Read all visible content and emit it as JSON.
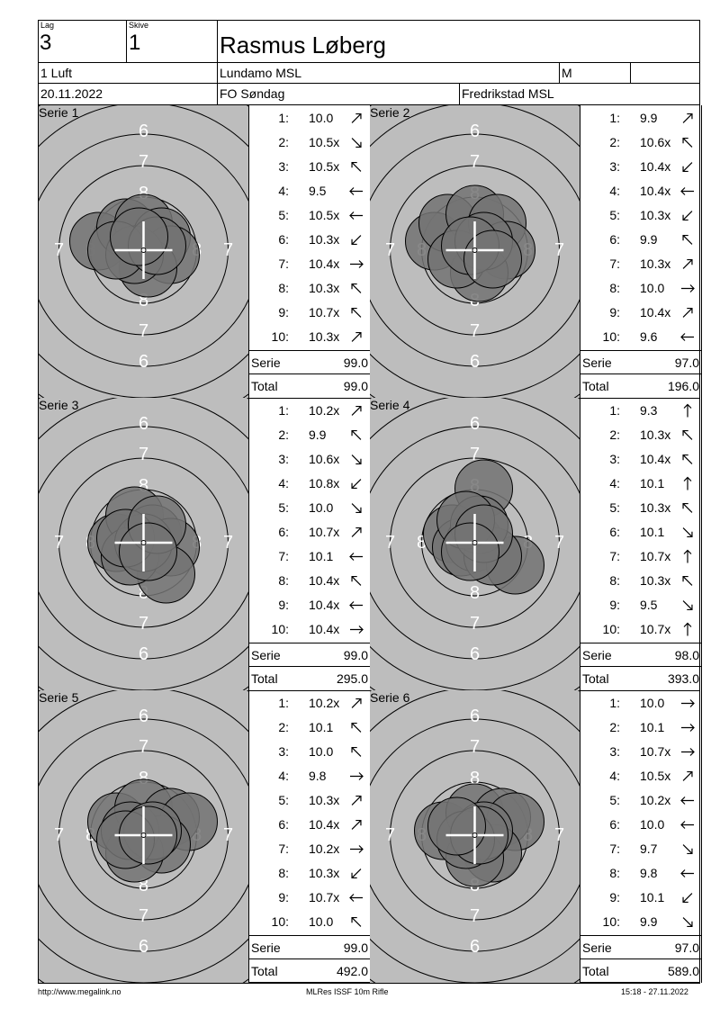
{
  "header": {
    "lag_label": "Lag",
    "lag": "3",
    "skive_label": "Skive",
    "skive": "1",
    "name": "Rasmus Løberg",
    "klasse": "1 Luft",
    "club": "Lundamo MSL",
    "gender": "M",
    "date": "20.11.2022",
    "event": "FO Søndag",
    "host": "Fredrikstad MSL"
  },
  "labels": {
    "serie": "Serie",
    "total": "Total"
  },
  "series": [
    {
      "label": "Serie 1",
      "sum": "99.0",
      "total": "99.0",
      "shots": [
        {
          "n": "1:",
          "v": "10.0",
          "dir": "up-right"
        },
        {
          "n": "2:",
          "v": "10.5x",
          "dir": "down-right"
        },
        {
          "n": "3:",
          "v": "10.5x",
          "dir": "up-left"
        },
        {
          "n": "4:",
          "v": "9.5",
          "dir": "left"
        },
        {
          "n": "5:",
          "v": "10.5x",
          "dir": "left"
        },
        {
          "n": "6:",
          "v": "10.3x",
          "dir": "down-left"
        },
        {
          "n": "7:",
          "v": "10.4x",
          "dir": "right"
        },
        {
          "n": "8:",
          "v": "10.3x",
          "dir": "up-left"
        },
        {
          "n": "9:",
          "v": "10.7x",
          "dir": "up-left"
        },
        {
          "n": "10:",
          "v": "10.3x",
          "dir": "up-right"
        }
      ]
    },
    {
      "label": "Serie 2",
      "sum": "97.0",
      "total": "196.0",
      "shots": [
        {
          "n": "1:",
          "v": "9.9",
          "dir": "up-right"
        },
        {
          "n": "2:",
          "v": "10.6x",
          "dir": "up-left"
        },
        {
          "n": "3:",
          "v": "10.4x",
          "dir": "down-left"
        },
        {
          "n": "4:",
          "v": "10.4x",
          "dir": "left"
        },
        {
          "n": "5:",
          "v": "10.3x",
          "dir": "down-left"
        },
        {
          "n": "6:",
          "v": "9.9",
          "dir": "up-left"
        },
        {
          "n": "7:",
          "v": "10.3x",
          "dir": "up-right"
        },
        {
          "n": "8:",
          "v": "10.0",
          "dir": "right"
        },
        {
          "n": "9:",
          "v": "10.4x",
          "dir": "up-right"
        },
        {
          "n": "10:",
          "v": "9.6",
          "dir": "left"
        }
      ]
    },
    {
      "label": "Serie 3",
      "sum": "99.0",
      "total": "295.0",
      "shots": [
        {
          "n": "1:",
          "v": "10.2x",
          "dir": "up-right"
        },
        {
          "n": "2:",
          "v": "9.9",
          "dir": "up-left"
        },
        {
          "n": "3:",
          "v": "10.6x",
          "dir": "down-right"
        },
        {
          "n": "4:",
          "v": "10.8x",
          "dir": "down-left"
        },
        {
          "n": "5:",
          "v": "10.0",
          "dir": "down-right"
        },
        {
          "n": "6:",
          "v": "10.7x",
          "dir": "up-right"
        },
        {
          "n": "7:",
          "v": "10.1",
          "dir": "left"
        },
        {
          "n": "8:",
          "v": "10.4x",
          "dir": "up-left"
        },
        {
          "n": "9:",
          "v": "10.4x",
          "dir": "left"
        },
        {
          "n": "10:",
          "v": "10.4x",
          "dir": "right"
        }
      ]
    },
    {
      "label": "Serie 4",
      "sum": "98.0",
      "total": "393.0",
      "shots": [
        {
          "n": "1:",
          "v": "9.3",
          "dir": "up"
        },
        {
          "n": "2:",
          "v": "10.3x",
          "dir": "up-left"
        },
        {
          "n": "3:",
          "v": "10.4x",
          "dir": "up-left"
        },
        {
          "n": "4:",
          "v": "10.1",
          "dir": "up"
        },
        {
          "n": "5:",
          "v": "10.3x",
          "dir": "up-left"
        },
        {
          "n": "6:",
          "v": "10.1",
          "dir": "down-right"
        },
        {
          "n": "7:",
          "v": "10.7x",
          "dir": "up"
        },
        {
          "n": "8:",
          "v": "10.3x",
          "dir": "up-left"
        },
        {
          "n": "9:",
          "v": "9.5",
          "dir": "down-right"
        },
        {
          "n": "10:",
          "v": "10.7x",
          "dir": "up"
        }
      ]
    },
    {
      "label": "Serie 5",
      "sum": "99.0",
      "total": "492.0",
      "shots": [
        {
          "n": "1:",
          "v": "10.2x",
          "dir": "up-right"
        },
        {
          "n": "2:",
          "v": "10.1",
          "dir": "up-left"
        },
        {
          "n": "3:",
          "v": "10.0",
          "dir": "up-left"
        },
        {
          "n": "4:",
          "v": "9.8",
          "dir": "right"
        },
        {
          "n": "5:",
          "v": "10.3x",
          "dir": "up-right"
        },
        {
          "n": "6:",
          "v": "10.4x",
          "dir": "up-right"
        },
        {
          "n": "7:",
          "v": "10.2x",
          "dir": "right"
        },
        {
          "n": "8:",
          "v": "10.3x",
          "dir": "down-left"
        },
        {
          "n": "9:",
          "v": "10.7x",
          "dir": "left"
        },
        {
          "n": "10:",
          "v": "10.0",
          "dir": "up-left"
        }
      ]
    },
    {
      "label": "Serie 6",
      "sum": "97.0",
      "total": "589.0",
      "shots": [
        {
          "n": "1:",
          "v": "10.0",
          "dir": "right"
        },
        {
          "n": "2:",
          "v": "10.1",
          "dir": "right"
        },
        {
          "n": "3:",
          "v": "10.7x",
          "dir": "right"
        },
        {
          "n": "4:",
          "v": "10.5x",
          "dir": "up-right"
        },
        {
          "n": "5:",
          "v": "10.2x",
          "dir": "left"
        },
        {
          "n": "6:",
          "v": "10.0",
          "dir": "left"
        },
        {
          "n": "7:",
          "v": "9.7",
          "dir": "down-right"
        },
        {
          "n": "8:",
          "v": "9.8",
          "dir": "left"
        },
        {
          "n": "9:",
          "v": "10.1",
          "dir": "down-left"
        },
        {
          "n": "10:",
          "v": "9.9",
          "dir": "down-right"
        }
      ]
    }
  ],
  "footer": {
    "left": "http://www.megalink.no",
    "center": "MLRes ISSF 10m Rifle",
    "right": "15:18 - 27.11.2022"
  },
  "colors": {
    "target_bg": "#bdbdbd",
    "hit_fill": "#737373"
  }
}
